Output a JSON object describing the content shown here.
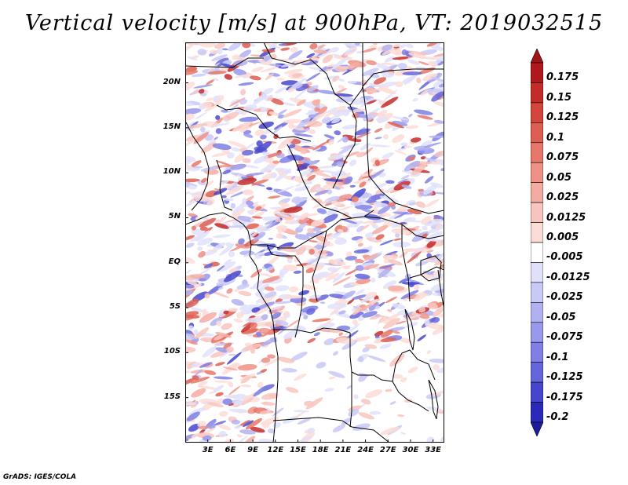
{
  "title": "Vertical velocity [m/s] at 900hPa, VT: 2019032515",
  "credit": "GrADS: IGES/COLA",
  "map": {
    "lat_range": [
      -20,
      24.5
    ],
    "lon_range": [
      0,
      34.5
    ],
    "lat_ticks": [
      {
        "label": "20N",
        "value": 20
      },
      {
        "label": "15N",
        "value": 15
      },
      {
        "label": "10N",
        "value": 10
      },
      {
        "label": "5N",
        "value": 5
      },
      {
        "label": "EQ",
        "value": 0
      },
      {
        "label": "5S",
        "value": -5
      },
      {
        "label": "10S",
        "value": -10
      },
      {
        "label": "15S",
        "value": -15
      }
    ],
    "lon_ticks": [
      {
        "label": "3E",
        "value": 3
      },
      {
        "label": "6E",
        "value": 6
      },
      {
        "label": "9E",
        "value": 9
      },
      {
        "label": "12E",
        "value": 12
      },
      {
        "label": "15E",
        "value": 15
      },
      {
        "label": "18E",
        "value": 18
      },
      {
        "label": "21E",
        "value": 21
      },
      {
        "label": "24E",
        "value": 24
      },
      {
        "label": "27E",
        "value": 27
      },
      {
        "label": "30E",
        "value": 30
      },
      {
        "label": "33E",
        "value": 33
      }
    ]
  },
  "colorbar": {
    "levels": [
      {
        "label": "0.175",
        "color": "#b0181c"
      },
      {
        "label": "0.15",
        "color": "#c42c2a"
      },
      {
        "label": "0.125",
        "color": "#d2463c"
      },
      {
        "label": "0.1",
        "color": "#de5f52"
      },
      {
        "label": "0.075",
        "color": "#e7776a"
      },
      {
        "label": "0.05",
        "color": "#ef9186"
      },
      {
        "label": "0.025",
        "color": "#f4aba2"
      },
      {
        "label": "0.0125",
        "color": "#f8c5be"
      },
      {
        "label": "0.005",
        "color": "#fbdcd7"
      },
      {
        "label": "-0.005",
        "color": "#ffffff"
      },
      {
        "label": "-0.0125",
        "color": "#e0e0fb"
      },
      {
        "label": "-0.025",
        "color": "#c9c9f6"
      },
      {
        "label": "-0.05",
        "color": "#b1b1f1"
      },
      {
        "label": "-0.075",
        "color": "#9898ec"
      },
      {
        "label": "-0.1",
        "color": "#7f7fe4"
      },
      {
        "label": "-0.125",
        "color": "#6565dc"
      },
      {
        "label": "-0.175",
        "color": "#4646cc"
      },
      {
        "label": "-0.2",
        "color": "#2a2ab8"
      }
    ],
    "top_color": "#a01418",
    "bottom_color": "#1c1c9c"
  }
}
